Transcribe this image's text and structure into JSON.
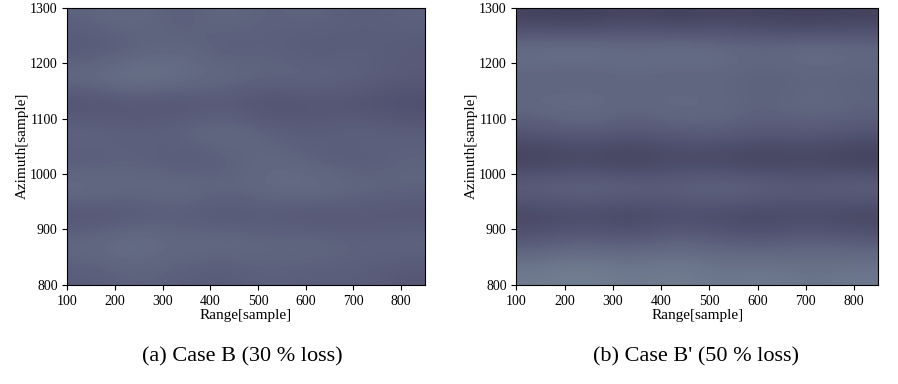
{
  "chart_data": [
    {
      "type": "heatmap",
      "caption": "(a) Case B (30 % loss)",
      "x_label": "Range[sample]",
      "y_label": "Azimuth[sample]",
      "xlim": [
        100,
        850
      ],
      "xticks": [
        100,
        200,
        300,
        400,
        500,
        600,
        700,
        800
      ],
      "ylim": [
        800,
        1300
      ],
      "yticks": [
        800,
        900,
        1000,
        1100,
        1200,
        1300
      ],
      "cells": [
        [
          0.42,
          0.45,
          0.4,
          0.44,
          0.41,
          0.43,
          0.4,
          0.42
        ],
        [
          0.38,
          0.4,
          0.44,
          0.39,
          0.42,
          0.38,
          0.41,
          0.39
        ],
        [
          0.46,
          0.5,
          0.47,
          0.45,
          0.43,
          0.44,
          0.42,
          0.4
        ],
        [
          0.35,
          0.37,
          0.36,
          0.38,
          0.35,
          0.37,
          0.36,
          0.34
        ],
        [
          0.44,
          0.41,
          0.43,
          0.46,
          0.42,
          0.4,
          0.43,
          0.41
        ],
        [
          0.39,
          0.42,
          0.38,
          0.4,
          0.44,
          0.41,
          0.39,
          0.42
        ],
        [
          0.47,
          0.44,
          0.46,
          0.43,
          0.45,
          0.47,
          0.44,
          0.43
        ],
        [
          0.36,
          0.38,
          0.4,
          0.37,
          0.39,
          0.36,
          0.38,
          0.37
        ],
        [
          0.45,
          0.48,
          0.44,
          0.46,
          0.43,
          0.45,
          0.42,
          0.44
        ],
        [
          0.4,
          0.42,
          0.41,
          0.39,
          0.42,
          0.4,
          0.41,
          0.38
        ]
      ]
    },
    {
      "type": "heatmap",
      "caption": "(b) Case B' (50 % loss)",
      "x_label": "Range[sample]",
      "y_label": "Azimuth[sample]",
      "xlim": [
        100,
        850
      ],
      "xticks": [
        100,
        200,
        300,
        400,
        500,
        600,
        700,
        800
      ],
      "ylim": [
        800,
        1300
      ],
      "yticks": [
        800,
        900,
        1000,
        1100,
        1200,
        1300
      ],
      "cells": [
        [
          0.3,
          0.28,
          0.32,
          0.29,
          0.31,
          0.3,
          0.28,
          0.3
        ],
        [
          0.48,
          0.5,
          0.46,
          0.49,
          0.47,
          0.45,
          0.48,
          0.46
        ],
        [
          0.42,
          0.4,
          0.44,
          0.41,
          0.43,
          0.4,
          0.42,
          0.41
        ],
        [
          0.45,
          0.47,
          0.43,
          0.46,
          0.44,
          0.42,
          0.45,
          0.43
        ],
        [
          0.38,
          0.41,
          0.39,
          0.4,
          0.42,
          0.39,
          0.4,
          0.38
        ],
        [
          0.28,
          0.3,
          0.27,
          0.31,
          0.29,
          0.28,
          0.3,
          0.27
        ],
        [
          0.44,
          0.46,
          0.45,
          0.43,
          0.47,
          0.44,
          0.42,
          0.45
        ],
        [
          0.3,
          0.32,
          0.29,
          0.33,
          0.31,
          0.3,
          0.32,
          0.29
        ],
        [
          0.4,
          0.43,
          0.41,
          0.44,
          0.42,
          0.4,
          0.43,
          0.41
        ],
        [
          0.5,
          0.52,
          0.49,
          0.51,
          0.48,
          0.5,
          0.47,
          0.49
        ]
      ]
    }
  ]
}
